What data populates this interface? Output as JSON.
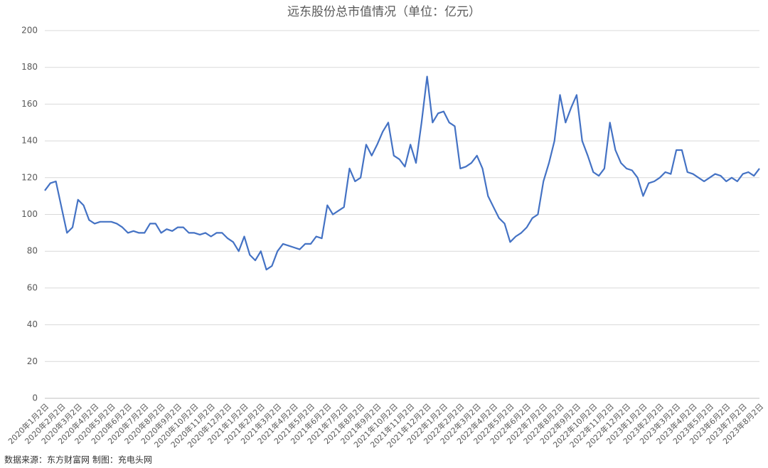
{
  "chart_data": {
    "type": "line",
    "title": "远东股份总市值情况（单位：亿元）",
    "source": "数据来源：东方财富网 制图：充电头网",
    "categories": [
      "2020年1月2日",
      null,
      null,
      "2020年2月2日",
      null,
      null,
      "2020年3月2日",
      null,
      null,
      "2020年4月2日",
      null,
      null,
      "2020年5月2日",
      null,
      null,
      "2020年6月2日",
      null,
      null,
      "2020年7月2日",
      null,
      null,
      "2020年8月2日",
      null,
      null,
      "2020年9月2日",
      null,
      null,
      "2020年10月2日",
      null,
      null,
      "2020年11月2日",
      null,
      null,
      "2020年12月2日",
      null,
      null,
      "2021年1月2日",
      null,
      null,
      "2021年2月2日",
      null,
      null,
      "2021年3月2日",
      null,
      null,
      "2021年4月2日",
      null,
      null,
      "2021年5月2日",
      null,
      null,
      "2021年6月2日",
      null,
      null,
      "2021年7月2日",
      null,
      null,
      "2021年8月2日",
      null,
      null,
      "2021年9月2日",
      null,
      null,
      "2021年10月2日",
      null,
      null,
      "2021年11月2日",
      null,
      null,
      "2021年12月2日",
      null,
      null,
      "2022年1月2日",
      null,
      null,
      "2022年2月2日",
      null,
      null,
      "2022年3月2日",
      null,
      null,
      "2022年4月2日",
      null,
      null,
      "2022年5月2日",
      null,
      null,
      "2022年6月2日",
      null,
      null,
      "2022年7月2日",
      null,
      null,
      "2022年8月2日",
      null,
      null,
      "2022年9月2日",
      null,
      null,
      "2022年10月2日",
      null,
      null,
      "2022年11月2日",
      null,
      null,
      "2022年12月2日",
      null,
      null,
      "2023年1月2日",
      null,
      null,
      "2023年2月2日",
      null,
      null,
      "2023年3月2日",
      null,
      null,
      "2023年4月2日",
      null,
      null,
      "2023年5月2日",
      null,
      null,
      "2023年6月2日",
      null,
      null,
      "2023年7月2日",
      null,
      null,
      "2023年8月2日"
    ],
    "series": [
      {
        "name": "总市值",
        "color": "#4472c4",
        "values": [
          113,
          117,
          118,
          104,
          90,
          93,
          108,
          105,
          97,
          95,
          96,
          96,
          96,
          95,
          93,
          90,
          91,
          90,
          90,
          95,
          95,
          90,
          92,
          91,
          93,
          93,
          90,
          90,
          89,
          90,
          88,
          90,
          90,
          87,
          85,
          80,
          88,
          78,
          75,
          80,
          70,
          72,
          80,
          84,
          83,
          82,
          81,
          84,
          84,
          88,
          87,
          105,
          100,
          102,
          104,
          125,
          118,
          120,
          138,
          132,
          138,
          145,
          150,
          132,
          130,
          126,
          138,
          128,
          150,
          175,
          150,
          155,
          156,
          150,
          148,
          125,
          126,
          128,
          132,
          125,
          110,
          104,
          98,
          95,
          85,
          88,
          90,
          93,
          98,
          100,
          118,
          128,
          140,
          165,
          150,
          158,
          165,
          140,
          132,
          123,
          121,
          125,
          150,
          135,
          128,
          125,
          124,
          120,
          110,
          117,
          118,
          120,
          123,
          122,
          135,
          135,
          123,
          122,
          120,
          118,
          120,
          122,
          121,
          118,
          120,
          118,
          122,
          123,
          121,
          125
        ]
      }
    ],
    "ylim": [
      0,
      200
    ],
    "yticks": [
      0,
      20,
      40,
      60,
      80,
      100,
      120,
      140,
      160,
      180,
      200
    ],
    "grid": true
  }
}
